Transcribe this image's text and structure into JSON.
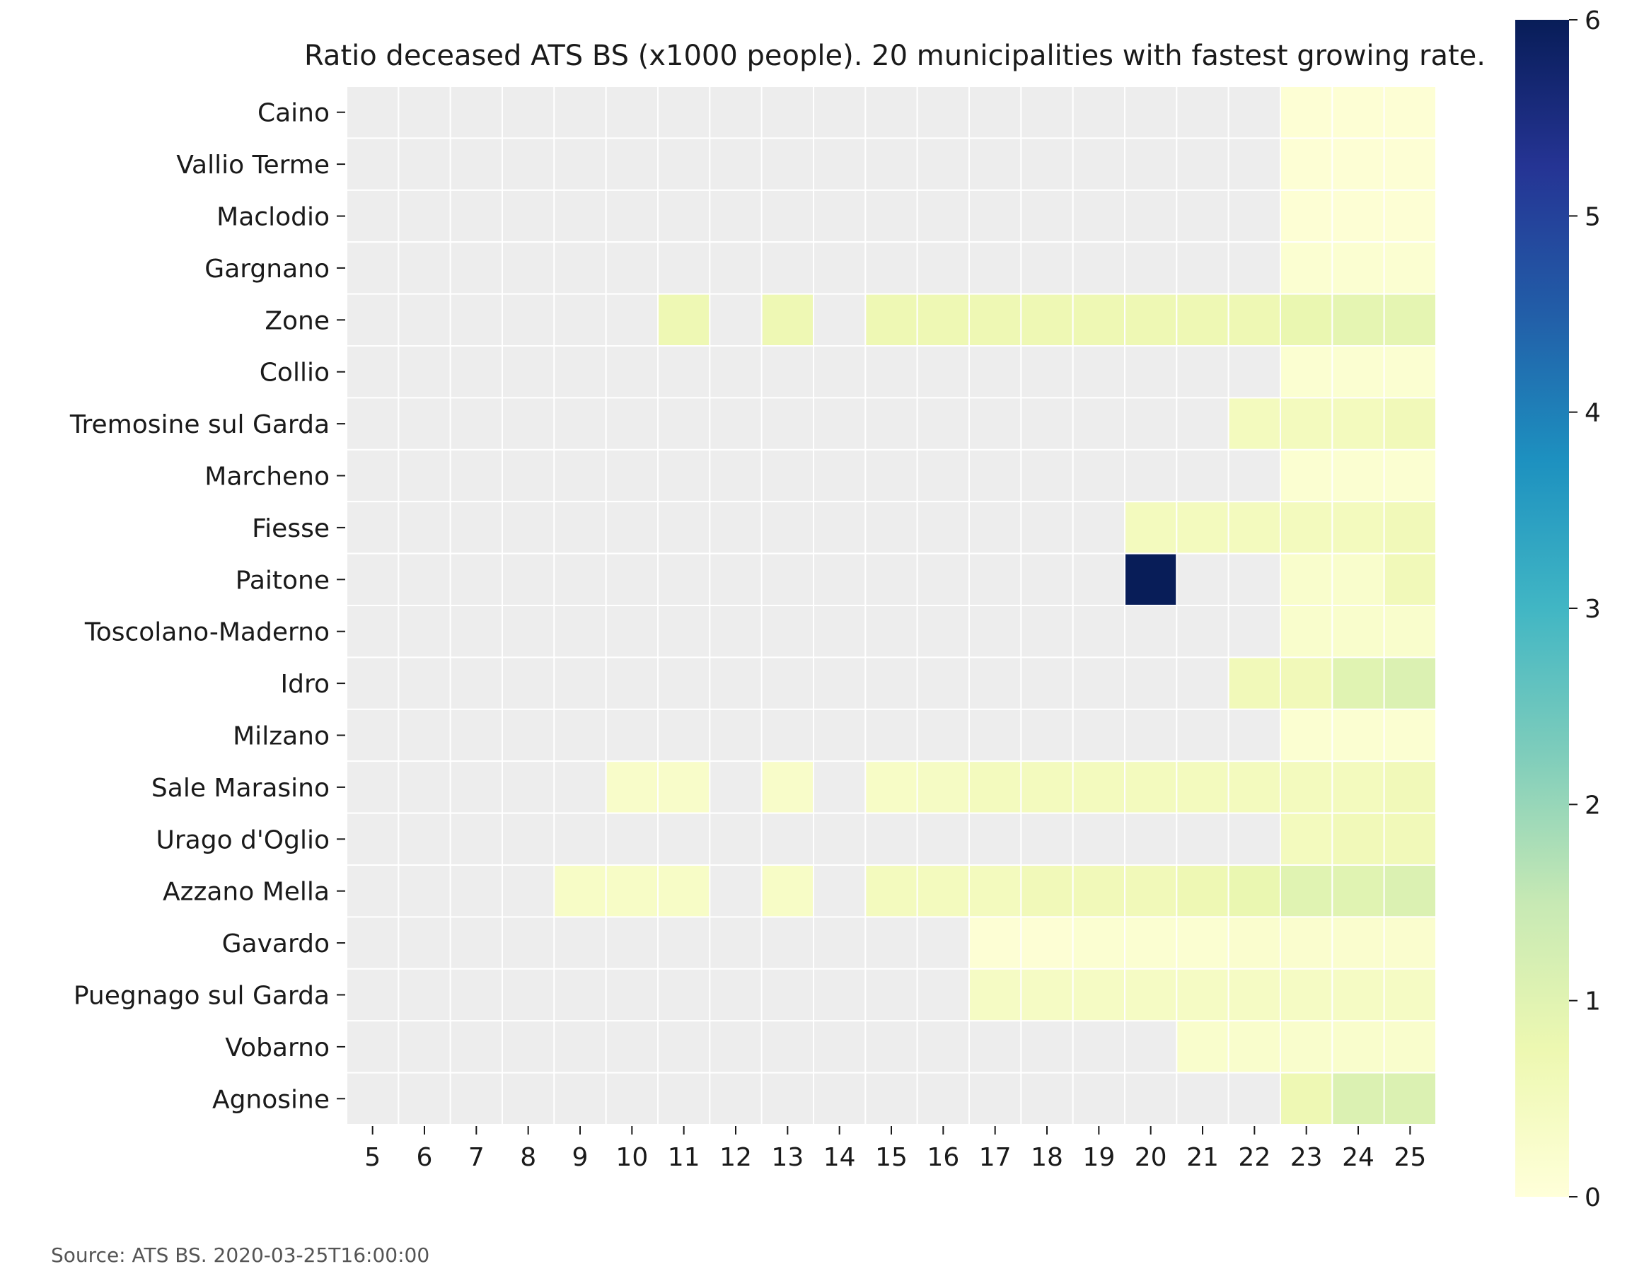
{
  "chart_data": {
    "type": "heatmap",
    "title": "Ratio deceased ATS BS (x1000 people). 20 municipalities with fastest growing rate.",
    "source": "Source: ATS BS. 2020-03-25T16:00:00",
    "x": [
      5,
      6,
      7,
      8,
      9,
      10,
      11,
      12,
      13,
      14,
      15,
      16,
      17,
      18,
      19,
      20,
      21,
      22,
      23,
      24,
      25
    ],
    "rows": [
      "Caino",
      "Vallio Terme",
      "Maclodio",
      "Gargnano",
      "Zone",
      "Collio",
      "Tremosine sul Garda",
      "Marcheno",
      "Fiesse",
      "Paitone",
      "Toscolano-Maderno",
      "Idro",
      "Milzano",
      "Sale Marasino",
      "Urago d'Oglio",
      "Azzano Mella",
      "Gavardo",
      "Puegnago sul Garda",
      "Vobarno",
      "Agnosine"
    ],
    "values": [
      [
        null,
        null,
        null,
        null,
        null,
        null,
        null,
        null,
        null,
        null,
        null,
        null,
        null,
        null,
        null,
        null,
        null,
        null,
        0.1,
        0.1,
        0.1
      ],
      [
        null,
        null,
        null,
        null,
        null,
        null,
        null,
        null,
        null,
        null,
        null,
        null,
        null,
        null,
        null,
        null,
        null,
        null,
        0.1,
        0.1,
        0.1
      ],
      [
        null,
        null,
        null,
        null,
        null,
        null,
        null,
        null,
        null,
        null,
        null,
        null,
        null,
        null,
        null,
        null,
        null,
        null,
        0.1,
        0.1,
        0.1
      ],
      [
        null,
        null,
        null,
        null,
        null,
        null,
        null,
        null,
        null,
        null,
        null,
        null,
        null,
        null,
        null,
        null,
        null,
        null,
        0.15,
        0.15,
        0.15
      ],
      [
        null,
        null,
        null,
        null,
        null,
        null,
        0.7,
        null,
        0.7,
        null,
        0.7,
        0.7,
        0.7,
        0.7,
        0.7,
        0.7,
        0.7,
        0.7,
        0.8,
        0.9,
        0.9
      ],
      [
        null,
        null,
        null,
        null,
        null,
        null,
        null,
        null,
        null,
        null,
        null,
        null,
        null,
        null,
        null,
        null,
        null,
        null,
        0.15,
        0.15,
        0.15
      ],
      [
        null,
        null,
        null,
        null,
        null,
        null,
        null,
        null,
        null,
        null,
        null,
        null,
        null,
        null,
        null,
        null,
        null,
        0.5,
        0.5,
        0.5,
        0.6
      ],
      [
        null,
        null,
        null,
        null,
        null,
        null,
        null,
        null,
        null,
        null,
        null,
        null,
        null,
        null,
        null,
        null,
        null,
        null,
        0.15,
        0.15,
        0.15
      ],
      [
        null,
        null,
        null,
        null,
        null,
        null,
        null,
        null,
        null,
        null,
        null,
        null,
        null,
        null,
        null,
        0.5,
        0.5,
        0.5,
        0.5,
        0.5,
        0.6
      ],
      [
        null,
        null,
        null,
        null,
        null,
        null,
        null,
        null,
        null,
        null,
        null,
        null,
        null,
        null,
        null,
        6.0,
        null,
        null,
        0.25,
        0.25,
        0.6
      ],
      [
        null,
        null,
        null,
        null,
        null,
        null,
        null,
        null,
        null,
        null,
        null,
        null,
        null,
        null,
        null,
        null,
        null,
        null,
        0.25,
        0.25,
        0.25
      ],
      [
        null,
        null,
        null,
        null,
        null,
        null,
        null,
        null,
        null,
        null,
        null,
        null,
        null,
        null,
        null,
        null,
        null,
        0.6,
        0.6,
        1.0,
        1.1
      ],
      [
        null,
        null,
        null,
        null,
        null,
        null,
        null,
        null,
        null,
        null,
        null,
        null,
        null,
        null,
        null,
        null,
        null,
        null,
        0.15,
        0.15,
        0.15
      ],
      [
        null,
        null,
        null,
        null,
        null,
        0.3,
        0.3,
        null,
        0.3,
        null,
        0.35,
        0.4,
        0.5,
        0.5,
        0.5,
        0.5,
        0.5,
        0.5,
        0.5,
        0.5,
        0.6
      ],
      [
        null,
        null,
        null,
        null,
        null,
        null,
        null,
        null,
        null,
        null,
        null,
        null,
        null,
        null,
        null,
        null,
        null,
        null,
        0.5,
        0.6,
        0.6
      ],
      [
        null,
        null,
        null,
        null,
        0.35,
        0.35,
        0.35,
        null,
        0.35,
        null,
        0.5,
        0.5,
        0.5,
        0.6,
        0.6,
        0.6,
        0.7,
        0.8,
        1.0,
        1.0,
        1.1
      ],
      [
        null,
        null,
        null,
        null,
        null,
        null,
        null,
        null,
        null,
        null,
        null,
        null,
        0.1,
        0.1,
        0.15,
        0.15,
        0.15,
        0.2,
        0.2,
        0.2,
        0.2
      ],
      [
        null,
        null,
        null,
        null,
        null,
        null,
        null,
        null,
        null,
        null,
        null,
        null,
        0.4,
        0.4,
        0.4,
        0.4,
        0.4,
        0.4,
        0.4,
        0.4,
        0.4
      ],
      [
        null,
        null,
        null,
        null,
        null,
        null,
        null,
        null,
        null,
        null,
        null,
        null,
        null,
        null,
        null,
        null,
        0.25,
        0.25,
        0.25,
        0.25,
        0.25
      ],
      [
        null,
        null,
        null,
        null,
        null,
        null,
        null,
        null,
        null,
        null,
        null,
        null,
        null,
        null,
        null,
        null,
        null,
        null,
        0.7,
        1.1,
        1.1
      ]
    ],
    "colorbar": {
      "min": 0,
      "max": 6,
      "ticks": [
        0,
        1,
        2,
        3,
        4,
        5,
        6
      ],
      "colormap": "YlGnBu"
    },
    "missing_color": "#ededed",
    "grid": false,
    "legend": "colorbar-right"
  }
}
